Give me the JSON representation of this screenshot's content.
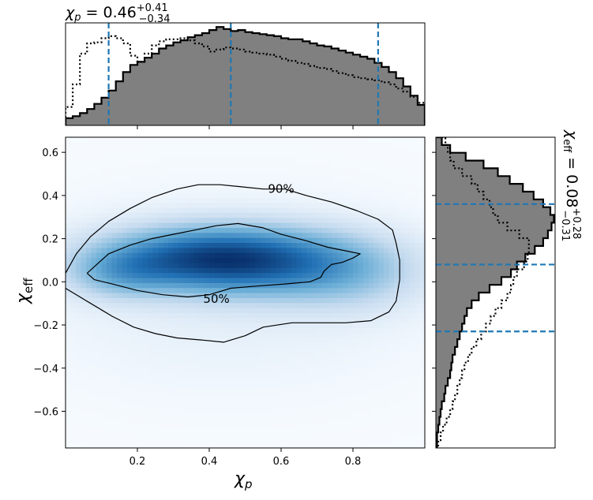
{
  "chart_data": [
    {
      "type": "heatmap",
      "panel": "joint",
      "x_var": "χ_p",
      "y_var": "χ_eff",
      "xlim": [
        0.0,
        1.0
      ],
      "ylim": [
        -0.77,
        0.67
      ],
      "xticks": [
        "0.2",
        "0.4",
        "0.6",
        "0.8"
      ],
      "yticks": [
        "−0.6",
        "−0.4",
        "−0.2",
        "0.0",
        "0.2",
        "0.4",
        "0.6"
      ],
      "xtick_values": [
        0.2,
        0.4,
        0.6,
        0.8
      ],
      "ytick_values": [
        -0.6,
        -0.4,
        -0.2,
        0.0,
        0.2,
        0.4,
        0.6
      ],
      "xlabel_base": "χ",
      "xlabel_sub": "p",
      "ylabel_base": "χ",
      "ylabel_sub": "eff",
      "colormap": [
        "#f7fbff",
        "#c6dbef",
        "#6baed6",
        "#2171b5",
        "#08306b"
      ],
      "density_blobs": [
        {
          "x": 0.38,
          "y": 0.11,
          "sx": 0.2,
          "sy": 0.1,
          "w": 1.0
        },
        {
          "x": 0.6,
          "y": 0.09,
          "sx": 0.2,
          "sy": 0.11,
          "w": 0.55
        },
        {
          "x": 0.15,
          "y": 0.04,
          "sx": 0.1,
          "sy": 0.08,
          "w": 0.35
        },
        {
          "x": 0.8,
          "y": 0.03,
          "sx": 0.14,
          "sy": 0.12,
          "w": 0.25
        },
        {
          "x": 0.45,
          "y": -0.05,
          "sx": 0.35,
          "sy": 0.28,
          "w": 0.1
        }
      ],
      "contours": [
        {
          "label": "50%",
          "label_at": [
            0.42,
            -0.08
          ],
          "points": [
            [
              0.06,
              0.04
            ],
            [
              0.08,
              0.07
            ],
            [
              0.12,
              0.13
            ],
            [
              0.18,
              0.17
            ],
            [
              0.24,
              0.2
            ],
            [
              0.3,
              0.22
            ],
            [
              0.36,
              0.24
            ],
            [
              0.42,
              0.26
            ],
            [
              0.48,
              0.27
            ],
            [
              0.55,
              0.25
            ],
            [
              0.6,
              0.22
            ],
            [
              0.67,
              0.19
            ],
            [
              0.73,
              0.16
            ],
            [
              0.79,
              0.14
            ],
            [
              0.82,
              0.13
            ],
            [
              0.8,
              0.11
            ],
            [
              0.77,
              0.09
            ],
            [
              0.74,
              0.08
            ],
            [
              0.72,
              0.05
            ],
            [
              0.71,
              0.02
            ],
            [
              0.68,
              0.0
            ],
            [
              0.61,
              -0.01
            ],
            [
              0.53,
              -0.02
            ],
            [
              0.46,
              -0.03
            ],
            [
              0.4,
              -0.06
            ],
            [
              0.34,
              -0.07
            ],
            [
              0.27,
              -0.06
            ],
            [
              0.2,
              -0.04
            ],
            [
              0.13,
              -0.01
            ],
            [
              0.08,
              0.01
            ],
            [
              0.06,
              0.04
            ]
          ]
        },
        {
          "label": "90%",
          "label_at": [
            0.6,
            0.43
          ],
          "points": [
            [
              0.0,
              0.04
            ],
            [
              0.03,
              0.13
            ],
            [
              0.07,
              0.21
            ],
            [
              0.12,
              0.28
            ],
            [
              0.18,
              0.34
            ],
            [
              0.24,
              0.39
            ],
            [
              0.31,
              0.43
            ],
            [
              0.37,
              0.45
            ],
            [
              0.43,
              0.45
            ],
            [
              0.49,
              0.44
            ],
            [
              0.55,
              0.43
            ],
            [
              0.61,
              0.43
            ],
            [
              0.67,
              0.4
            ],
            [
              0.74,
              0.37
            ],
            [
              0.81,
              0.33
            ],
            [
              0.87,
              0.29
            ],
            [
              0.91,
              0.24
            ],
            [
              0.92,
              0.18
            ],
            [
              0.93,
              0.1
            ],
            [
              0.93,
              0.01
            ],
            [
              0.92,
              -0.09
            ],
            [
              0.9,
              -0.14
            ],
            [
              0.85,
              -0.18
            ],
            [
              0.78,
              -0.19
            ],
            [
              0.7,
              -0.19
            ],
            [
              0.63,
              -0.19
            ],
            [
              0.55,
              -0.21
            ],
            [
              0.5,
              -0.25
            ],
            [
              0.44,
              -0.28
            ],
            [
              0.38,
              -0.27
            ],
            [
              0.31,
              -0.26
            ],
            [
              0.25,
              -0.24
            ],
            [
              0.19,
              -0.21
            ],
            [
              0.13,
              -0.16
            ],
            [
              0.07,
              -0.1
            ],
            [
              0.02,
              -0.05
            ],
            [
              0.0,
              -0.03
            ]
          ]
        }
      ]
    },
    {
      "type": "bar",
      "panel": "top-marginal",
      "variable": "χ_p",
      "title_prefix": "χ",
      "title_sub": "p",
      "title_value": "= 0.46",
      "title_plus": "+0.41",
      "title_minus": "−0.34",
      "x_start": 0.0,
      "bin_width": 0.02,
      "xlim": [
        0.0,
        1.0
      ],
      "ylim": [
        0,
        1.0
      ],
      "quantile_lines": [
        0.12,
        0.46,
        0.87
      ],
      "series": [
        {
          "style": "filled",
          "values": [
            0.07,
            0.09,
            0.12,
            0.16,
            0.21,
            0.27,
            0.34,
            0.43,
            0.52,
            0.59,
            0.62,
            0.66,
            0.7,
            0.75,
            0.78,
            0.81,
            0.83,
            0.86,
            0.88,
            0.9,
            0.93,
            0.96,
            0.94,
            0.92,
            0.93,
            0.91,
            0.9,
            0.89,
            0.88,
            0.87,
            0.85,
            0.84,
            0.84,
            0.82,
            0.8,
            0.78,
            0.77,
            0.75,
            0.73,
            0.71,
            0.69,
            0.67,
            0.65,
            0.61,
            0.57,
            0.52,
            0.46,
            0.38,
            0.29,
            0.2
          ]
        },
        {
          "style": "dotted",
          "values": [
            0.18,
            0.4,
            0.7,
            0.8,
            0.81,
            0.85,
            0.87,
            0.85,
            0.8,
            0.68,
            0.62,
            0.7,
            0.78,
            0.82,
            0.84,
            0.84,
            0.85,
            0.83,
            0.8,
            0.77,
            0.72,
            0.74,
            0.76,
            0.75,
            0.74,
            0.72,
            0.71,
            0.7,
            0.69,
            0.67,
            0.65,
            0.63,
            0.61,
            0.6,
            0.58,
            0.56,
            0.55,
            0.53,
            0.51,
            0.49,
            0.47,
            0.46,
            0.45,
            0.44,
            0.42,
            0.4,
            0.36,
            0.33,
            0.28,
            0.22
          ]
        }
      ]
    },
    {
      "type": "bar",
      "panel": "right-marginal",
      "orientation": "horizontal",
      "variable": "χ_eff",
      "title_prefix": "χ",
      "title_sub": "eff",
      "title_value": "= 0.08",
      "title_plus": "+0.28",
      "title_minus": "−0.31",
      "y_start": -0.77,
      "bin_width": 0.036,
      "ylim": [
        -0.77,
        0.67
      ],
      "xlim": [
        0,
        1.0
      ],
      "quantile_lines": [
        -0.23,
        0.08,
        0.36
      ],
      "series": [
        {
          "style": "filled",
          "values": [
            0.01,
            0.01,
            0.02,
            0.03,
            0.04,
            0.05,
            0.07,
            0.08,
            0.1,
            0.12,
            0.13,
            0.14,
            0.16,
            0.18,
            0.2,
            0.22,
            0.24,
            0.26,
            0.3,
            0.36,
            0.45,
            0.55,
            0.63,
            0.68,
            0.75,
            0.83,
            0.9,
            0.94,
            0.97,
            0.99,
            0.96,
            0.9,
            0.82,
            0.73,
            0.62,
            0.52,
            0.4,
            0.25,
            0.12,
            0.05
          ]
        },
        {
          "style": "dotted",
          "values": [
            0.02,
            0.04,
            0.06,
            0.09,
            0.12,
            0.14,
            0.16,
            0.18,
            0.2,
            0.22,
            0.24,
            0.27,
            0.3,
            0.34,
            0.38,
            0.42,
            0.46,
            0.5,
            0.55,
            0.6,
            0.63,
            0.65,
            0.68,
            0.74,
            0.77,
            0.78,
            0.78,
            0.7,
            0.6,
            0.52,
            0.48,
            0.45,
            0.4,
            0.35,
            0.3,
            0.22,
            0.15,
            0.12,
            0.1,
            0.08
          ]
        }
      ]
    }
  ]
}
